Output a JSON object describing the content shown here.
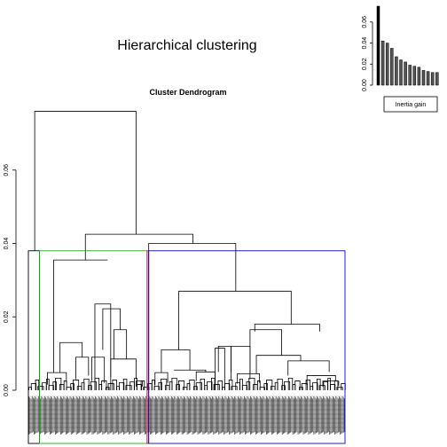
{
  "chart_data": [
    {
      "type": "bar",
      "title": "",
      "legend": {
        "entries": [
          "Inertia gain"
        ],
        "position": "below"
      },
      "values": [
        0.075,
        0.042,
        0.04,
        0.035,
        0.027,
        0.024,
        0.022,
        0.019,
        0.018,
        0.017,
        0.014,
        0.013,
        0.012,
        0.012
      ],
      "ylim": [
        0,
        0.075
      ],
      "yticks": [
        {
          "v": 0.0,
          "label": "0.00"
        },
        {
          "v": 0.02,
          "label": "0.02"
        },
        {
          "v": 0.04,
          "label": "0.04"
        },
        {
          "v": 0.06,
          "label": "0.06"
        }
      ]
    },
    {
      "type": "dendrogram",
      "title": "Hierarchical clustering",
      "subtitle": "Cluster Dendrogram",
      "xlabel": "",
      "ylabel": "",
      "ylim": [
        0,
        0.08
      ],
      "yticks": [
        {
          "v": 0.0,
          "label": "0.00"
        },
        {
          "v": 0.02,
          "label": "0.02"
        },
        {
          "v": 0.04,
          "label": "0.04"
        },
        {
          "v": 0.06,
          "label": "0.06"
        }
      ],
      "root_height": 0.076,
      "merges": [
        {
          "left_at": 0.02,
          "right_at": 0.34,
          "height": 0.076
        },
        {
          "left_at": 0.18,
          "right_at": 0.52,
          "height": 0.0425
        },
        {
          "left_at": 0.38,
          "right_at": 0.655,
          "height": 0.04
        },
        {
          "left_at": 0.08,
          "right_at": 0.25,
          "height": 0.0355
        },
        {
          "left_at": 0.475,
          "right_at": 0.83,
          "height": 0.027
        },
        {
          "left_at": 0.715,
          "right_at": 0.92,
          "height": 0.018
        }
      ],
      "cluster_boxes": [
        {
          "name": "cluster-1",
          "color": "#000000",
          "from": 0.0,
          "to": 0.035,
          "height": 0.038
        },
        {
          "name": "cluster-2",
          "color": "#00c000",
          "from": 0.035,
          "to": 0.375,
          "height": 0.038
        },
        {
          "name": "cluster-3",
          "color": "#ff0000",
          "from": 0.375,
          "to": 0.38,
          "height": 0.038
        },
        {
          "name": "cluster-4",
          "color": "#0000ff",
          "from": 0.38,
          "to": 1.0,
          "height": 0.038
        }
      ],
      "leaf_count": 300,
      "colors": {
        "axis": "#000000",
        "tree": "#000000"
      }
    }
  ]
}
